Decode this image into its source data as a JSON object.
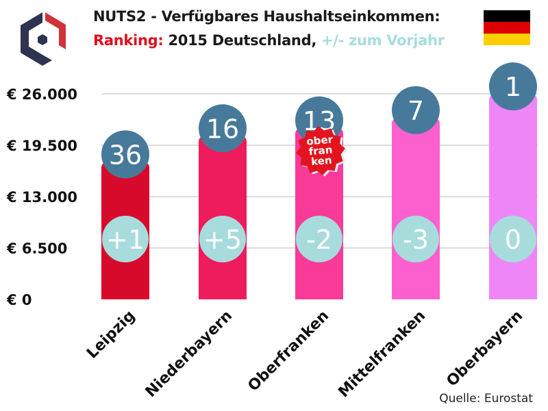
{
  "header": {
    "title_line1": "NUTS2 - Verfügbares Haushaltseinkommen:",
    "title_ranking": "Ranking:",
    "title_middle": " 2015 Deutschland, ",
    "title_change": "+/- zum Vorjahr"
  },
  "badge_text": "ober fran ken",
  "source": "Quelle: Eurostat",
  "colors": {
    "rank_circle": "#477a9a",
    "change_circle": "#a8dcdc",
    "ranking": "#e0101e",
    "change_text": "#a8dcdc"
  },
  "chart_data": {
    "type": "bar",
    "title": "NUTS2 - Verfügbares Haushaltseinkommen: Ranking: 2015 Deutschland, +/- zum Vorjahr",
    "categories": [
      "Leipzig",
      "Niederbayern",
      "Oberfranken",
      "Mittelfranken",
      "Oberbayern"
    ],
    "values": [
      17300,
      20600,
      21600,
      22900,
      25900
    ],
    "ranks": [
      "36",
      "16",
      "13",
      "7",
      "1"
    ],
    "changes": [
      "+1",
      "+5",
      "-2",
      "-3",
      "0"
    ],
    "bar_colors": [
      "#d80a2c",
      "#ee1c5c",
      "#fa3a98",
      "#fc60cf",
      "#ef86f8"
    ],
    "yticks": [
      0,
      6500,
      13000,
      19500,
      26000
    ],
    "ytick_labels": [
      "€ 0",
      "€ 6.500",
      "€ 13.000",
      "€ 19.500",
      "€ 26.000"
    ],
    "ylim": [
      0,
      26000
    ],
    "grid": true,
    "xlabel": "",
    "ylabel": ""
  }
}
